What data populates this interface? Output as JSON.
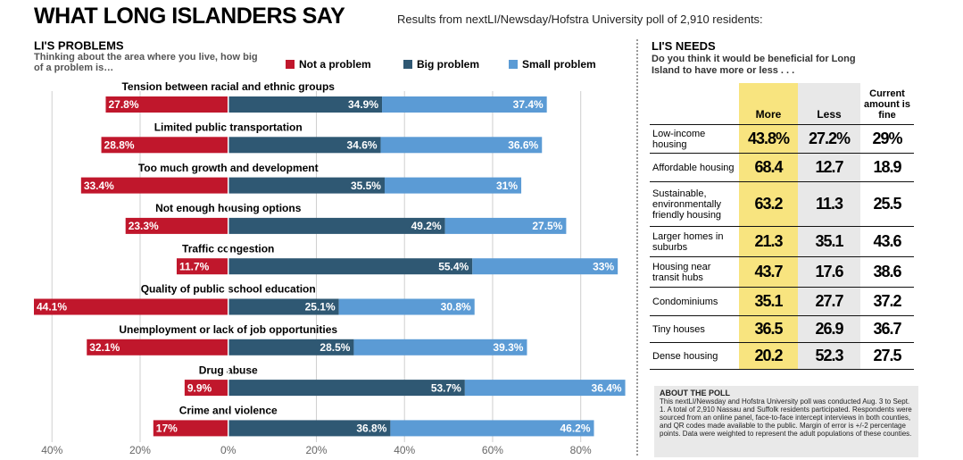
{
  "header": {
    "title": "WHAT LONG ISLANDERS SAY",
    "subtitle": "Results from nextLI/Newsday/Hofstra University poll of 2,910 residents:"
  },
  "chart_data": {
    "type": "diverging-bar",
    "title": "LI'S PROBLEMS",
    "subtitle": "Thinking about the area where you live, how big of a problem is…",
    "categories": [
      "Tension between racial and ethnic groups",
      "Limited public transportation",
      "Too much growth and development",
      "Not enough housing options",
      "Traffic congestion",
      "Quality of public school education",
      "Unemployment or lack of job opportunities",
      "Drug abuse",
      "Crime and violence"
    ],
    "series": [
      {
        "name": "Not a problem",
        "color": "#c0172c",
        "values": [
          -27.8,
          -28.8,
          -33.4,
          -23.3,
          -11.7,
          -44.1,
          -32.1,
          -9.9,
          -17
        ],
        "value_labels": [
          "27.8%",
          "28.8%",
          "33.4%",
          "23.3%",
          "11.7%",
          "44.1%",
          "32.1%",
          "9.9%",
          "17%"
        ]
      },
      {
        "name": "Big problem",
        "color": "#2f5873",
        "values": [
          34.9,
          34.6,
          35.5,
          49.2,
          55.4,
          25.1,
          28.5,
          53.7,
          36.8
        ],
        "value_labels": [
          "34.9%",
          "34.6%",
          "35.5%",
          "49.2%",
          "55.4%",
          "25.1%",
          "28.5%",
          "53.7%",
          "36.8%"
        ]
      },
      {
        "name": "Small problem",
        "color": "#5b9bd5",
        "values": [
          37.4,
          36.6,
          31,
          27.5,
          33,
          30.8,
          39.3,
          36.4,
          46.2
        ],
        "value_labels": [
          "37.4%",
          "36.6%",
          "31%",
          "27.5%",
          "33%",
          "30.8%",
          "39.3%",
          "36.4%",
          "46.2%"
        ]
      }
    ],
    "xlim": [
      -44.1,
      91
    ],
    "xticks": [
      {
        "value": -40,
        "label": "40%"
      },
      {
        "value": -20,
        "label": "20%"
      },
      {
        "value": 0,
        "label": "0%"
      },
      {
        "value": 20,
        "label": "20%"
      },
      {
        "value": 40,
        "label": "40%"
      },
      {
        "value": 60,
        "label": "60%"
      },
      {
        "value": 80,
        "label": "80%"
      }
    ],
    "grid": true
  },
  "needs": {
    "title": "LI'S NEEDS",
    "subtitle": "Do you think it would be beneficial for Long Island to have more or less . . .",
    "columns": [
      "More",
      "Less",
      "Current amount is fine"
    ],
    "rows": [
      [
        "Low-income housing",
        "43.8%",
        "27.2%",
        "29%"
      ],
      [
        "Affordable housing",
        "68.4",
        "12.7",
        "18.9"
      ],
      [
        "Sustainable, environmentally friendly housing",
        "63.2",
        "11.3",
        "25.5"
      ],
      [
        "Larger homes in suburbs",
        "21.3",
        "35.1",
        "43.6"
      ],
      [
        "Housing near transit hubs",
        "43.7",
        "17.6",
        "38.6"
      ],
      [
        "Condominiums",
        "35.1",
        "27.7",
        "37.2"
      ],
      [
        "Tiny houses",
        "36.5",
        "26.9",
        "36.7"
      ],
      [
        "Dense housing",
        "20.2",
        "52.3",
        "27.5"
      ]
    ]
  },
  "about": {
    "title": "ABOUT THE POLL",
    "text": "This nextLI/Newsday and Hofstra University poll was conducted Aug. 3 to Sept. 1. A total of 2,910 Nassau and Suffolk residents participated. Respondents were sourced from an online panel, face-to-face intercept interviews in both counties, and QR codes made available to the public. Margin of error is +/-2 percentage points. Data were weighted to represent the adult populations of these counties."
  }
}
